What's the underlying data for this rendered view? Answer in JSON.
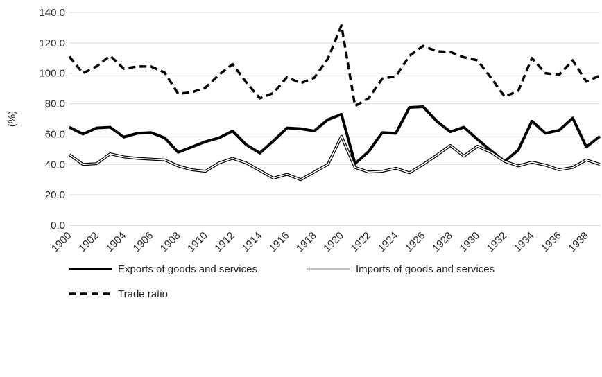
{
  "chart_data": {
    "type": "line",
    "title": "",
    "xlabel": "",
    "ylabel": "(%)",
    "ylim": [
      0,
      140
    ],
    "yticks": [
      "0.0",
      "20.0",
      "40.0",
      "60.0",
      "80.0",
      "100.0",
      "120.0",
      "140.0"
    ],
    "x": [
      1900,
      1901,
      1902,
      1903,
      1904,
      1905,
      1906,
      1907,
      1908,
      1909,
      1910,
      1911,
      1912,
      1913,
      1914,
      1915,
      1916,
      1917,
      1918,
      1919,
      1920,
      1921,
      1922,
      1923,
      1924,
      1925,
      1926,
      1927,
      1928,
      1929,
      1930,
      1931,
      1932,
      1933,
      1934,
      1935,
      1936,
      1937,
      1938,
      1939
    ],
    "xtick_labels": [
      "1900",
      "1902",
      "1904",
      "1906",
      "1908",
      "1910",
      "1912",
      "1914",
      "1916",
      "1918",
      "1920",
      "1922",
      "1924",
      "1926",
      "1928",
      "1930",
      "1932",
      "1934",
      "1936",
      "1938"
    ],
    "grid": true,
    "legend_position": "bottom",
    "series": [
      {
        "name": "Exports of goods and services",
        "style": "solid-thick",
        "color": "#000000",
        "values": [
          64.5,
          60.0,
          64.0,
          64.5,
          58.0,
          60.5,
          61.0,
          57.5,
          48.0,
          51.5,
          55.0,
          57.5,
          62.0,
          53.0,
          47.5,
          55.5,
          64.0,
          63.5,
          62.0,
          69.5,
          73.0,
          40.5,
          48.5,
          61.0,
          60.5,
          77.5,
          78.0,
          68.5,
          61.5,
          64.5,
          56.5,
          49.0,
          42.0,
          49.5,
          68.5,
          60.5,
          62.5,
          70.5,
          51.5,
          58.5
        ]
      },
      {
        "name": "Imports of goods and services",
        "style": "double-line",
        "color": "#000000",
        "values": [
          46.5,
          40.0,
          40.5,
          47.0,
          45.0,
          44.0,
          43.5,
          43.0,
          39.0,
          36.5,
          35.5,
          41.0,
          44.0,
          41.0,
          36.0,
          31.0,
          33.5,
          30.0,
          35.0,
          40.0,
          58.5,
          38.0,
          35.0,
          35.5,
          37.5,
          34.5,
          40.0,
          46.0,
          52.5,
          45.5,
          52.0,
          48.0,
          42.0,
          39.0,
          41.5,
          39.5,
          36.5,
          38.0,
          43.0,
          40.0
        ]
      },
      {
        "name": "Trade ratio",
        "style": "dashed",
        "color": "#000000",
        "values": [
          111.0,
          100.0,
          104.5,
          111.5,
          103.0,
          104.5,
          104.5,
          100.5,
          86.5,
          87.5,
          90.5,
          99.0,
          106.0,
          94.0,
          83.5,
          87.0,
          97.5,
          93.5,
          97.0,
          109.5,
          131.5,
          78.5,
          83.5,
          96.5,
          98.0,
          111.5,
          118.0,
          114.5,
          114.0,
          110.5,
          108.5,
          97.0,
          84.5,
          88.5,
          110.0,
          100.0,
          99.0,
          108.5,
          94.5,
          98.5
        ]
      }
    ]
  }
}
